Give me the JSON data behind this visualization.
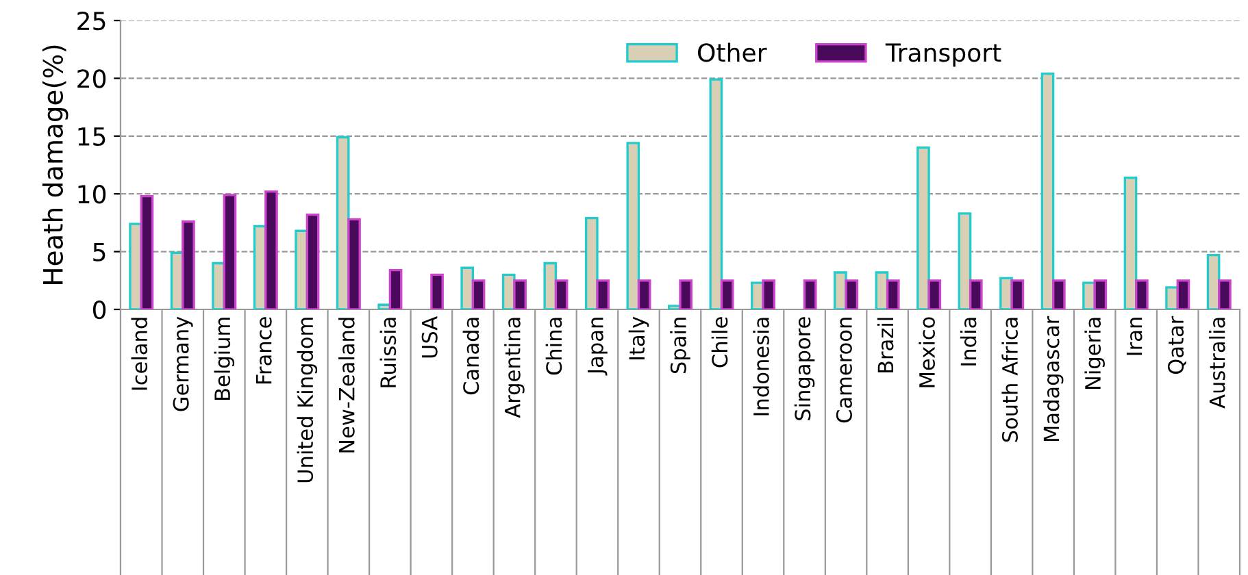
{
  "chart_data": {
    "type": "bar",
    "ylabel": "Heath damage(%)",
    "categories": [
      "Iceland",
      "Germany",
      "Belgium",
      "France",
      "United Kingdom",
      "New-Zealand",
      "Ruissia",
      "USA",
      "Canada",
      "Argentina",
      "China",
      "Japan",
      "Italy",
      "Spain",
      "Chile",
      "Indonesia",
      "Singapore",
      "Cameroon",
      "Brazil",
      "Mexico",
      "India",
      "South Africa",
      "Madagascar",
      "Nigeria",
      "Iran",
      "Qatar",
      "Australia"
    ],
    "series": [
      {
        "name": "Other",
        "color": "#d9cfb5",
        "values": [
          7.4,
          4.9,
          4.0,
          7.2,
          6.8,
          14.9,
          0.4,
          null,
          3.6,
          3.0,
          4.0,
          7.9,
          14.4,
          0.3,
          19.9,
          2.3,
          null,
          3.2,
          3.2,
          14.0,
          8.3,
          2.7,
          20.4,
          2.3,
          11.4,
          1.9,
          4.7
        ]
      },
      {
        "name": "Transport",
        "color": "#4a0a5c",
        "values": [
          9.8,
          7.6,
          9.9,
          10.2,
          8.2,
          7.8,
          3.4,
          3.0,
          2.5,
          2.5,
          2.5,
          2.5,
          2.5,
          2.5,
          2.5,
          2.5,
          2.5,
          2.5,
          2.5,
          2.5,
          2.5,
          2.5,
          2.5,
          2.5,
          2.5,
          2.5,
          2.5
        ]
      }
    ],
    "ylim": [
      0,
      25
    ],
    "yticks": [
      0,
      5,
      10,
      15,
      20,
      25
    ],
    "grid": "y",
    "legend": "top"
  }
}
